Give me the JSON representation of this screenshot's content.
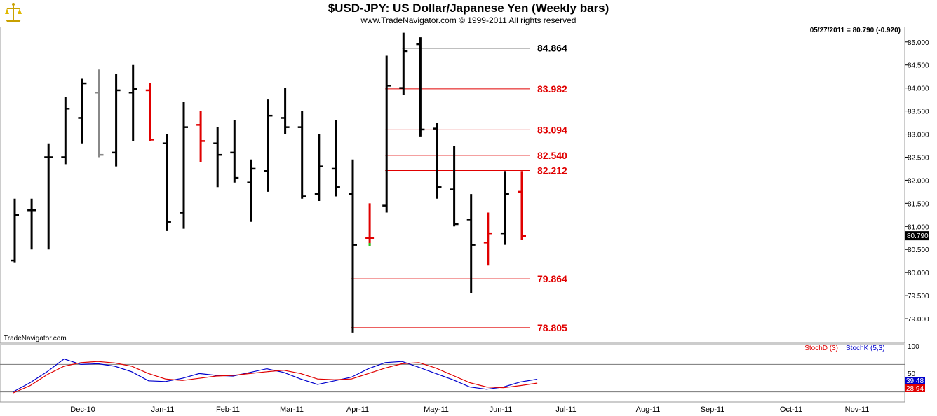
{
  "header": {
    "title": "$USD-JPY:  US Dollar/Japanese Yen  (Weekly bars)",
    "subtitle": "www.TradeNavigator.com © 1999-2011 All rights reserved"
  },
  "price_panel": {
    "info": "05/27/2011 = 80.790 (-0.920)",
    "watermark": "TradeNavigator.com",
    "last_price": "80.790",
    "last_price_value": 80.79,
    "y_ticks": [
      "85.000",
      "84.500",
      "84.000",
      "83.500",
      "83.000",
      "82.500",
      "82.000",
      "81.500",
      "81.000",
      "80.500",
      "80.000",
      "79.500",
      "79.000"
    ]
  },
  "osc_panel": {
    "label_d": "StochD (3)",
    "label_k": "StochK (5,3)",
    "y_ticks": [
      "100",
      "50"
    ],
    "k_value": "39.48",
    "d_value": "28.94"
  },
  "months": [
    "Dec-10",
    "Jan-11",
    "Feb-11",
    "Mar-11",
    "Apr-11",
    "May-11",
    "Jun-11",
    "Jul-11",
    "Aug-11",
    "Sep-11",
    "Oct-11",
    "Nov-11"
  ],
  "colors": {
    "up": "#000000",
    "down": "#e00000",
    "neutral": "#888888",
    "hline_black": "#000000",
    "hline_red": "#e00000",
    "stoch_k": "#0000cc",
    "stoch_d": "#e00000",
    "k_badge": "#0000cc",
    "d_badge": "#e00000",
    "ref_line": "#777777"
  },
  "chart_data": [
    {
      "type": "ohlc",
      "title": "$USD-JPY:  US Dollar/Japanese Yen  (Weekly bars)",
      "ylim": [
        78.7,
        85.2
      ],
      "x_unit": "week",
      "bars": [
        {
          "x": 0,
          "o": 80.26,
          "h": 81.6,
          "l": 80.22,
          "c": 81.25,
          "color": "up"
        },
        {
          "x": 1,
          "o": 81.35,
          "h": 81.6,
          "l": 80.5,
          "c": 81.35,
          "color": "up"
        },
        {
          "x": 2,
          "o": 82.5,
          "h": 82.8,
          "l": 80.5,
          "c": 82.5,
          "color": "up"
        },
        {
          "x": 3,
          "o": 82.5,
          "h": 83.8,
          "l": 82.35,
          "c": 83.55,
          "color": "up"
        },
        {
          "x": 4,
          "o": 83.35,
          "h": 84.2,
          "l": 82.8,
          "c": 84.1,
          "color": "up"
        },
        {
          "x": 5,
          "o": 83.9,
          "h": 84.4,
          "l": 82.5,
          "c": 82.55,
          "color": "neutral"
        },
        {
          "x": 6,
          "o": 82.6,
          "h": 84.3,
          "l": 82.3,
          "c": 83.95,
          "color": "up"
        },
        {
          "x": 7,
          "o": 83.9,
          "h": 84.5,
          "l": 82.85,
          "c": 83.98,
          "color": "up"
        },
        {
          "x": 8,
          "o": 83.95,
          "h": 84.1,
          "l": 82.85,
          "c": 82.88,
          "color": "down"
        },
        {
          "x": 9,
          "o": 82.8,
          "h": 83.0,
          "l": 80.9,
          "c": 81.1,
          "color": "up"
        },
        {
          "x": 10,
          "o": 81.3,
          "h": 83.7,
          "l": 80.95,
          "c": 83.15,
          "color": "up"
        },
        {
          "x": 11,
          "o": 83.2,
          "h": 83.5,
          "l": 82.4,
          "c": 82.85,
          "color": "down"
        },
        {
          "x": 12,
          "o": 82.8,
          "h": 83.15,
          "l": 81.85,
          "c": 82.55,
          "color": "up"
        },
        {
          "x": 13,
          "o": 82.6,
          "h": 83.3,
          "l": 81.95,
          "c": 82.05,
          "color": "up"
        },
        {
          "x": 14,
          "o": 81.95,
          "h": 82.45,
          "l": 81.1,
          "c": 82.25,
          "color": "up"
        },
        {
          "x": 15,
          "o": 82.2,
          "h": 83.75,
          "l": 81.75,
          "c": 83.4,
          "color": "up"
        },
        {
          "x": 16,
          "o": 83.35,
          "h": 84.0,
          "l": 83.0,
          "c": 83.15,
          "color": "up"
        },
        {
          "x": 17,
          "o": 83.15,
          "h": 83.5,
          "l": 81.6,
          "c": 81.65,
          "color": "up"
        },
        {
          "x": 18,
          "o": 81.7,
          "h": 83.0,
          "l": 81.55,
          "c": 82.3,
          "color": "up"
        },
        {
          "x": 19,
          "o": 82.25,
          "h": 83.3,
          "l": 81.65,
          "c": 81.85,
          "color": "up"
        },
        {
          "x": 20,
          "o": 81.7,
          "h": 82.45,
          "l": 78.7,
          "c": 80.6,
          "color": "up"
        },
        {
          "x": 21,
          "o": 80.75,
          "h": 81.5,
          "l": 80.58,
          "c": 80.75,
          "color": "down"
        },
        {
          "x": 22,
          "o": 81.45,
          "h": 84.7,
          "l": 81.3,
          "c": 84.05,
          "color": "up"
        },
        {
          "x": 23,
          "o": 84.0,
          "h": 85.2,
          "l": 83.85,
          "c": 84.8,
          "color": "up"
        },
        {
          "x": 24,
          "o": 84.95,
          "h": 85.1,
          "l": 82.95,
          "c": 83.1,
          "color": "up"
        },
        {
          "x": 25,
          "o": 83.12,
          "h": 83.25,
          "l": 81.6,
          "c": 81.85,
          "color": "up"
        },
        {
          "x": 26,
          "o": 81.8,
          "h": 82.75,
          "l": 81.0,
          "c": 81.05,
          "color": "up"
        },
        {
          "x": 27,
          "o": 81.15,
          "h": 81.7,
          "l": 79.55,
          "c": 80.6,
          "color": "up"
        },
        {
          "x": 28,
          "o": 80.65,
          "h": 81.3,
          "l": 80.15,
          "c": 80.85,
          "color": "down"
        },
        {
          "x": 29,
          "o": 80.85,
          "h": 82.2,
          "l": 80.6,
          "c": 81.7,
          "color": "up"
        },
        {
          "x": 30,
          "o": 81.75,
          "h": 82.2,
          "l": 80.7,
          "c": 80.79,
          "color": "down"
        }
      ],
      "levels": [
        {
          "value": 84.864,
          "label": "84.864",
          "color": "black",
          "from_bar": 23
        },
        {
          "value": 83.982,
          "label": "83.982",
          "color": "red",
          "from_bar": 22
        },
        {
          "value": 83.094,
          "label": "83.094",
          "color": "red",
          "from_bar": 22
        },
        {
          "value": 82.54,
          "label": "82.540",
          "color": "red",
          "from_bar": 22
        },
        {
          "value": 82.212,
          "label": "82.212",
          "color": "red",
          "from_bar": 22
        },
        {
          "value": 79.864,
          "label": "79.864",
          "color": "red",
          "from_bar": 20
        },
        {
          "value": 78.805,
          "label": "78.805",
          "color": "red",
          "from_bar": 20
        }
      ]
    },
    {
      "type": "line",
      "title": "",
      "ylim": [
        0,
        100
      ],
      "series": [
        {
          "name": "StochK (5,3)",
          "color": "blue",
          "values": [
            5,
            30,
            60,
            95,
            80,
            82,
            75,
            60,
            35,
            33,
            42,
            55,
            50,
            48,
            58,
            68,
            58,
            40,
            25,
            35,
            45,
            68,
            85,
            88,
            72,
            55,
            38,
            18,
            12,
            18,
            32,
            39.48
          ]
        },
        {
          "name": "StochD (3)",
          "color": "red",
          "values": [
            2,
            22,
            52,
            75,
            85,
            88,
            84,
            75,
            55,
            40,
            36,
            42,
            48,
            50,
            55,
            60,
            64,
            55,
            40,
            38,
            40,
            55,
            70,
            82,
            85,
            70,
            50,
            30,
            18,
            16,
            22,
            28.94
          ]
        }
      ]
    }
  ]
}
